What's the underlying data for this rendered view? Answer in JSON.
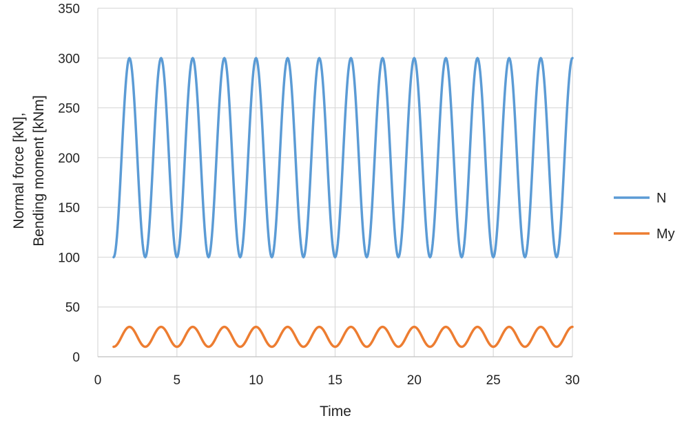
{
  "chart_data": {
    "type": "line",
    "xlabel": "Time",
    "ylabel_lines": [
      "Normal force [kN],",
      "Bending moment [kNm]"
    ],
    "xlim": [
      0,
      30
    ],
    "ylim": [
      0,
      350
    ],
    "x_ticks": [
      0,
      5,
      10,
      15,
      20,
      25,
      30
    ],
    "y_ticks": [
      0,
      50,
      100,
      150,
      200,
      250,
      300,
      350
    ],
    "grid": true,
    "legend_position": "right",
    "series": [
      {
        "name": "N",
        "color": "#5b9bd5",
        "x": [
          1,
          2,
          3,
          4,
          5,
          6,
          7,
          8,
          9,
          10,
          11,
          12,
          13,
          14,
          15,
          16,
          17,
          18,
          19,
          20,
          21,
          22,
          23,
          24,
          25,
          26,
          27,
          28,
          29,
          30
        ],
        "values": [
          100,
          300,
          100,
          300,
          100,
          300,
          100,
          300,
          100,
          300,
          100,
          300,
          100,
          300,
          100,
          300,
          100,
          300,
          100,
          300,
          100,
          300,
          100,
          300,
          100,
          300,
          100,
          300,
          100,
          300
        ]
      },
      {
        "name": "My",
        "color": "#ed7d31",
        "x": [
          1,
          2,
          3,
          4,
          5,
          6,
          7,
          8,
          9,
          10,
          11,
          12,
          13,
          14,
          15,
          16,
          17,
          18,
          19,
          20,
          21,
          22,
          23,
          24,
          25,
          26,
          27,
          28,
          29,
          30
        ],
        "values": [
          10,
          30,
          10,
          30,
          10,
          30,
          10,
          30,
          10,
          30,
          10,
          30,
          10,
          30,
          10,
          30,
          10,
          30,
          10,
          30,
          10,
          30,
          10,
          30,
          10,
          30,
          10,
          30,
          10,
          30
        ]
      }
    ]
  }
}
